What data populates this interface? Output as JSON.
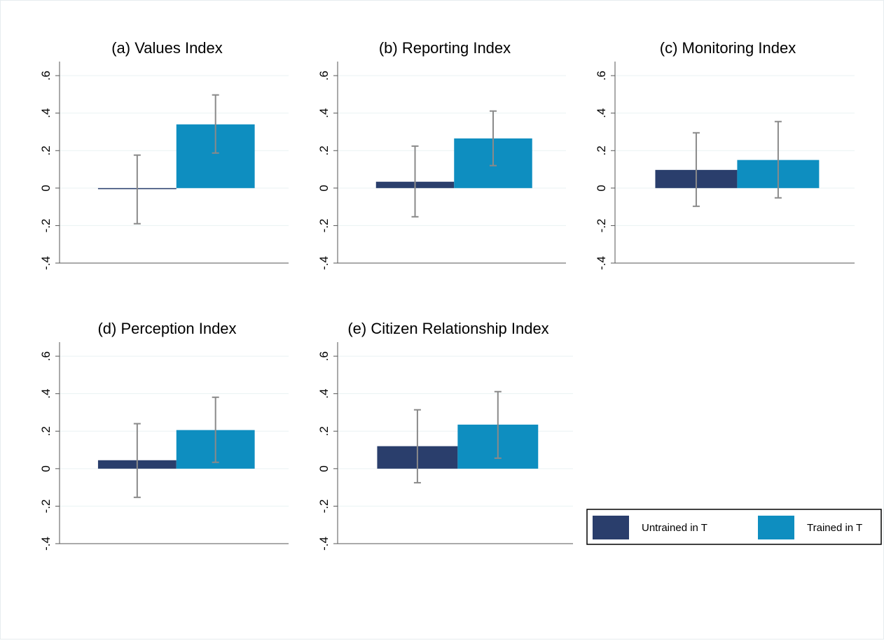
{
  "chart_data": [
    {
      "type": "bar",
      "title": "(a) Values Index",
      "ylim": [
        -0.4,
        0.675
      ],
      "yticks": [
        {
          "value": -0.4,
          "label": "-.4"
        },
        {
          "value": -0.2,
          "label": "-.2"
        },
        0,
        {
          "value": 0.2,
          "label": ".2"
        },
        {
          "value": 0.4,
          "label": ".4"
        },
        {
          "value": 0.6,
          "label": ".6"
        }
      ],
      "grid": true,
      "series": [
        {
          "values": [
            -0.003
          ],
          "ci_low": [
            -0.19
          ],
          "ci_high": [
            0.176
          ]
        },
        {
          "values": [
            0.34
          ],
          "ci_low": [
            0.187
          ],
          "ci_high": [
            0.497
          ]
        }
      ]
    },
    {
      "type": "bar",
      "title": "(b) Reporting Index",
      "ylim": [
        -0.4,
        0.675
      ],
      "yticks": [
        {
          "value": -0.4,
          "label": "-.4"
        },
        {
          "value": -0.2,
          "label": "-.2"
        },
        0,
        {
          "value": 0.2,
          "label": ".2"
        },
        {
          "value": 0.4,
          "label": ".4"
        },
        {
          "value": 0.6,
          "label": ".6"
        }
      ],
      "grid": true,
      "series": [
        {
          "values": [
            0.034
          ],
          "ci_low": [
            -0.153
          ],
          "ci_high": [
            0.224
          ]
        },
        {
          "values": [
            0.265
          ],
          "ci_low": [
            0.12
          ],
          "ci_high": [
            0.411
          ]
        }
      ]
    },
    {
      "type": "bar",
      "title": "(c) Monitoring Index",
      "ylim": [
        -0.4,
        0.675
      ],
      "yticks": [
        {
          "value": -0.4,
          "label": "-.4"
        },
        {
          "value": -0.2,
          "label": "-.2"
        },
        0,
        {
          "value": 0.2,
          "label": ".2"
        },
        {
          "value": 0.4,
          "label": ".4"
        },
        {
          "value": 0.6,
          "label": ".6"
        }
      ],
      "grid": true,
      "series": [
        {
          "values": [
            0.097
          ],
          "ci_low": [
            -0.097
          ],
          "ci_high": [
            0.295
          ]
        },
        {
          "values": [
            0.15
          ],
          "ci_low": [
            -0.052
          ],
          "ci_high": [
            0.355
          ]
        }
      ]
    },
    {
      "type": "bar",
      "title": "(d) Perception Index",
      "ylim": [
        -0.4,
        0.675
      ],
      "yticks": [
        {
          "value": -0.4,
          "label": "-.4"
        },
        {
          "value": -0.2,
          "label": "-.2"
        },
        0,
        {
          "value": 0.2,
          "label": ".2"
        },
        {
          "value": 0.4,
          "label": ".4"
        },
        {
          "value": 0.6,
          "label": ".6"
        }
      ],
      "grid": true,
      "series": [
        {
          "values": [
            0.045
          ],
          "ci_low": [
            -0.153
          ],
          "ci_high": [
            0.24
          ]
        },
        {
          "values": [
            0.206
          ],
          "ci_low": [
            0.034
          ],
          "ci_high": [
            0.381
          ]
        }
      ]
    },
    {
      "type": "bar",
      "title": "(e) Citizen Relationship Index",
      "ylim": [
        -0.4,
        0.675
      ],
      "yticks": [
        {
          "value": -0.4,
          "label": "-.4"
        },
        {
          "value": -0.2,
          "label": "-.2"
        },
        0,
        {
          "value": 0.2,
          "label": ".2"
        },
        {
          "value": 0.4,
          "label": ".4"
        },
        {
          "value": 0.6,
          "label": ".6"
        }
      ],
      "grid": true,
      "series": [
        {
          "values": [
            0.12
          ],
          "ci_low": [
            -0.075
          ],
          "ci_high": [
            0.314
          ]
        },
        {
          "values": [
            0.235
          ],
          "ci_low": [
            0.056
          ],
          "ci_high": [
            0.411
          ]
        }
      ]
    }
  ],
  "legend": {
    "series": [
      {
        "name": "Untrained in T",
        "color": "#2a3e6c"
      },
      {
        "name": "Trained in T",
        "color": "#0e8ec0"
      }
    ]
  }
}
